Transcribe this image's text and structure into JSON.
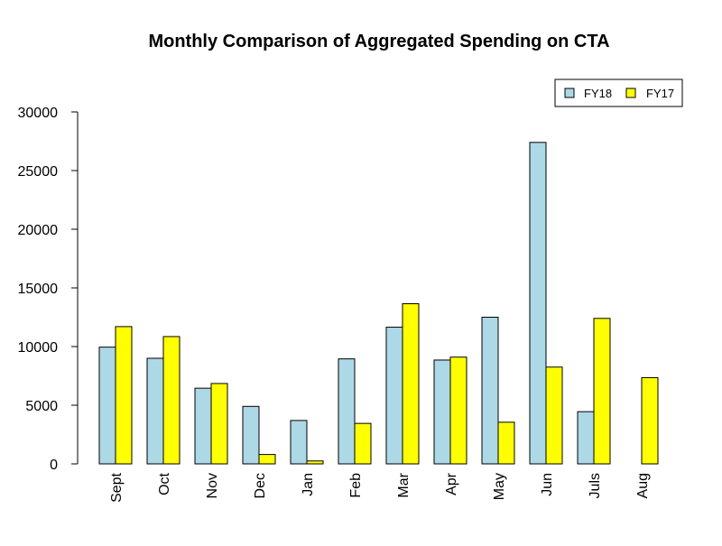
{
  "chart_data": {
    "type": "bar",
    "title": "Monthly Comparison of Aggregated Spending on CTA",
    "xlabel": "",
    "ylabel": "",
    "categories": [
      "Sept",
      "Oct",
      "Nov",
      "Dec",
      "Jan",
      "Feb",
      "Mar",
      "Apr",
      "May",
      "Jun",
      "Juls",
      "Aug"
    ],
    "series": [
      {
        "name": "FY18",
        "color": "#add8e6",
        "values": [
          9950,
          9000,
          6450,
          4900,
          3700,
          8950,
          11650,
          8850,
          12500,
          27400,
          4450,
          0
        ]
      },
      {
        "name": "FY17",
        "color": "#ffff00",
        "values": [
          11700,
          10850,
          6850,
          800,
          250,
          3450,
          13650,
          9100,
          3550,
          8250,
          12400,
          7350
        ]
      }
    ],
    "ylim": [
      0,
      30000
    ],
    "yticks": [
      0,
      5000,
      10000,
      15000,
      20000,
      25000,
      30000
    ],
    "grid": false,
    "legend_position": "top-right"
  }
}
